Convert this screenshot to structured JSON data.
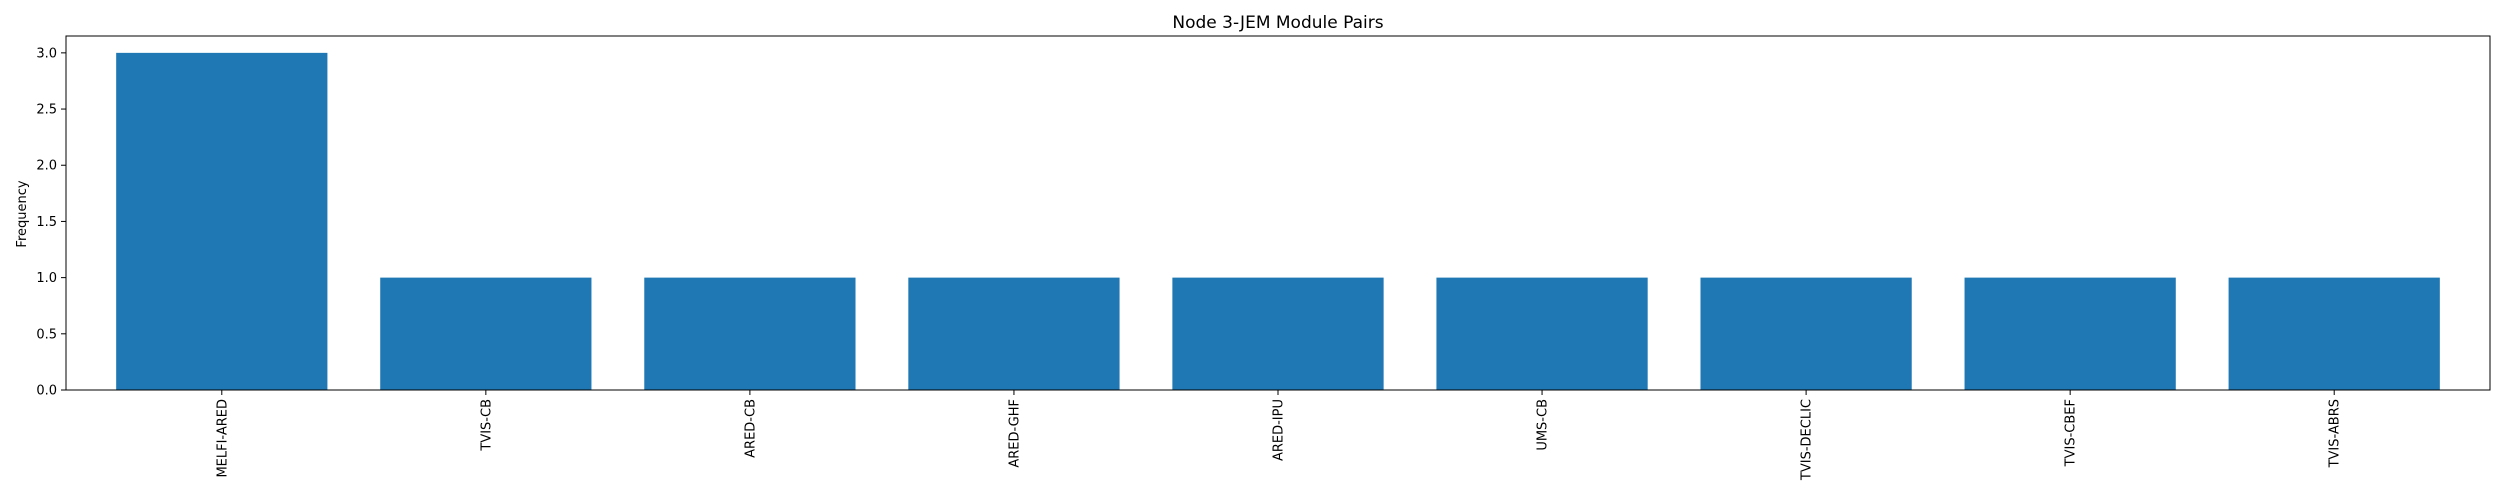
{
  "chart_data": {
    "type": "bar",
    "title": "Node 3-JEM Module Pairs",
    "xlabel": "",
    "ylabel": "Frequency",
    "categories": [
      "MELFI-ARED",
      "TVIS-CB",
      "ARED-CB",
      "ARED-GHF",
      "ARED-IPU",
      "UMS-CB",
      "TVIS-DECLIC",
      "TVIS-CBEF",
      "TVIS-ABRS"
    ],
    "values": [
      3,
      1,
      1,
      1,
      1,
      1,
      1,
      1,
      1
    ],
    "ylim": [
      0,
      3.15
    ],
    "yticks": [
      "0.0",
      "0.5",
      "1.0",
      "1.5",
      "2.0",
      "2.5",
      "3.0"
    ],
    "bar_color": "#1f77b4",
    "grid": false,
    "legend": "none"
  }
}
